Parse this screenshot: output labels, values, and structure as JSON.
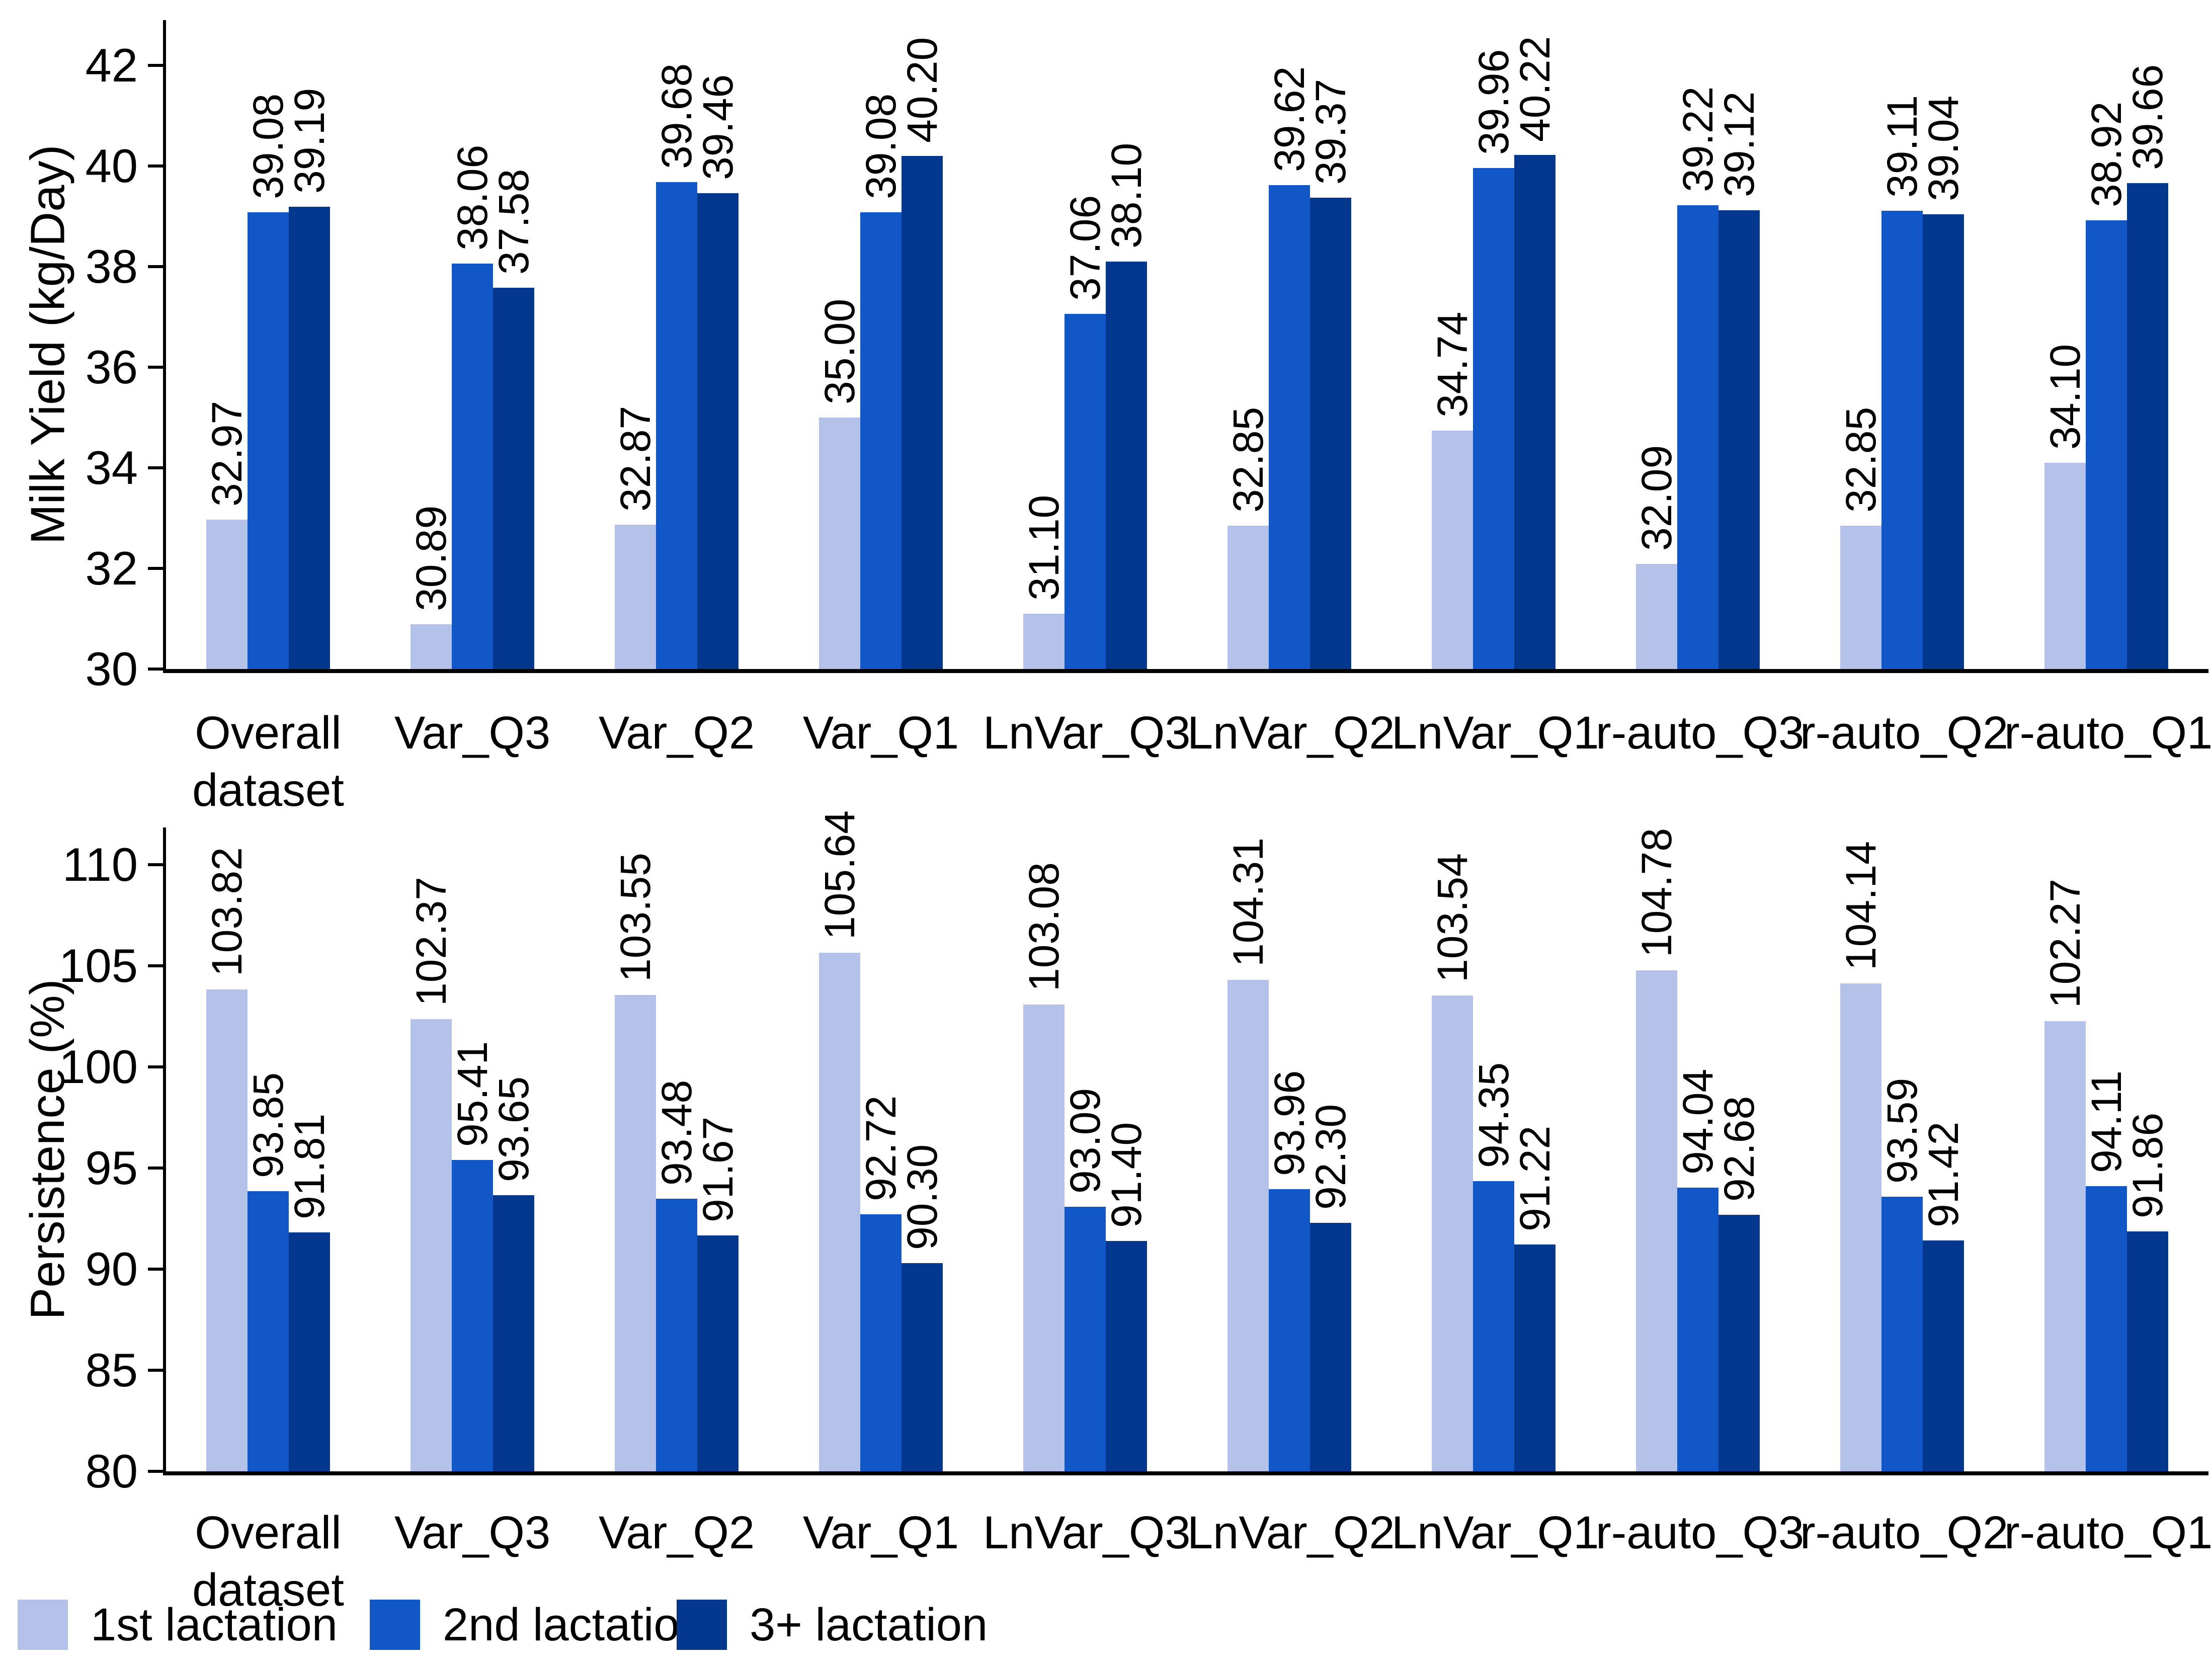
{
  "chart_data": [
    {
      "type": "bar",
      "title": "",
      "xlabel": "",
      "ylabel": "Milk Yield (kg/Day)",
      "ylim": [
        30,
        42.9
      ],
      "y_ticks": [
        30,
        32,
        34,
        36,
        38,
        40,
        42
      ],
      "grid": false,
      "legend_position": "bottom-left",
      "value_labels": {
        "visible": true,
        "rotation": 90,
        "decimals": 2
      },
      "categories": [
        "Overall dataset",
        "Var_Q3",
        "Var_Q2",
        "Var_Q1",
        "LnVar_Q3",
        "LnVar_Q2",
        "LnVar_Q1",
        "r-auto_Q3",
        "r-auto_Q2",
        "r-auto_Q1"
      ],
      "series": [
        {
          "name": "1st lactation",
          "color": "#b4c1e8",
          "values": [
            32.97,
            30.89,
            32.87,
            35.0,
            31.1,
            32.85,
            34.74,
            32.09,
            32.85,
            34.1
          ]
        },
        {
          "name": "2nd lactation",
          "color": "#1157c7",
          "values": [
            39.08,
            38.06,
            39.68,
            39.08,
            37.06,
            39.62,
            39.96,
            39.22,
            39.11,
            38.92
          ]
        },
        {
          "name": "3+ lactation",
          "color": "#04388f",
          "values": [
            39.19,
            37.58,
            39.46,
            40.2,
            38.1,
            39.37,
            40.22,
            39.12,
            39.04,
            39.66
          ]
        }
      ]
    },
    {
      "type": "bar",
      "title": "",
      "xlabel": "",
      "ylabel": "Persistence (%)",
      "ylim": [
        80,
        111.8
      ],
      "y_ticks": [
        80,
        85,
        90,
        95,
        100,
        105,
        110
      ],
      "grid": false,
      "legend_position": "bottom-left",
      "value_labels": {
        "visible": true,
        "rotation": 90,
        "decimals": 2
      },
      "categories": [
        "Overall dataset",
        "Var_Q3",
        "Var_Q2",
        "Var_Q1",
        "LnVar_Q3",
        "LnVar_Q2",
        "LnVar_Q1",
        "r-auto_Q3",
        "r-auto_Q2",
        "r-auto_Q1"
      ],
      "series": [
        {
          "name": "1st lactation",
          "color": "#b4c1e8",
          "values": [
            103.82,
            102.37,
            103.55,
            105.64,
            103.08,
            104.31,
            103.54,
            104.78,
            104.14,
            102.27
          ]
        },
        {
          "name": "2nd lactation",
          "color": "#1157c7",
          "values": [
            93.85,
            95.41,
            93.48,
            92.72,
            93.09,
            93.96,
            94.35,
            94.04,
            93.59,
            94.11
          ]
        },
        {
          "name": "3+ lactation",
          "color": "#04388f",
          "values": [
            91.81,
            93.65,
            91.67,
            90.3,
            91.4,
            92.3,
            91.22,
            92.68,
            91.42,
            91.86
          ]
        }
      ]
    }
  ],
  "legend": {
    "items": [
      "1st lactation",
      "2nd lactation",
      "3+ lactation"
    ]
  }
}
